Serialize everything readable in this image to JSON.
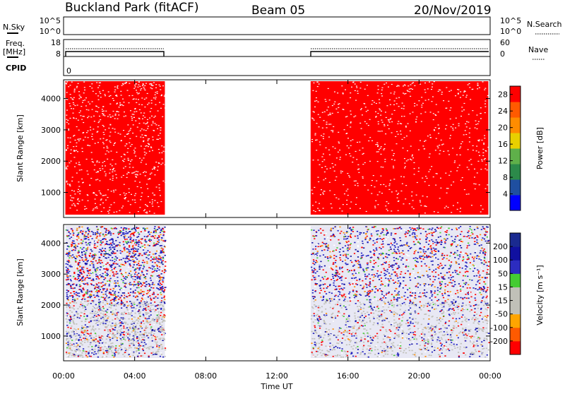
{
  "header": {
    "station": "Buckland Park (fitACF)",
    "beam": "Beam 05",
    "date": "20/Nov/2019"
  },
  "side_labels": {
    "nsky": "N.Sky",
    "nsky_ticks": [
      "10^5",
      "10^0"
    ],
    "nsearch": "N.Search",
    "nsearch_ticks": [
      "10^5",
      "10^0"
    ],
    "freq_line1": "Freq.",
    "freq_line2": "[MHz]",
    "freq_ticks": [
      "18",
      "8"
    ],
    "nave": "Nave",
    "nave_ticks": [
      "60",
      "0"
    ],
    "cpid": "CPID",
    "cpid_value": "0"
  },
  "colors": {
    "power_fill": "#ff0000",
    "power_scale": [
      "#0000ff",
      "#1f4fa0",
      "#2c8a4a",
      "#5fb04a",
      "#e8d000",
      "#ff8c00",
      "#ff5a00",
      "#ff0000"
    ],
    "velocity_scale": [
      "#ff0000",
      "#ff5a00",
      "#ffa500",
      "#c0c0b8",
      "#c0c0b8",
      "#44cc33",
      "#2c2cc0",
      "#1010a0",
      "#1a2a90"
    ]
  },
  "chart_data": [
    {
      "type": "heatmap",
      "name": "power",
      "ylabel": "Slant Range [km]",
      "yticks": [
        "1000",
        "2000",
        "3000",
        "4000"
      ],
      "ylim": [
        200,
        4600
      ],
      "xlabel": "",
      "xticks": [
        "00:00",
        "04:00",
        "08:00",
        "12:00",
        "16:00",
        "20:00",
        "00:00"
      ],
      "xlim_hours": [
        0,
        24
      ],
      "data_gaps_hours": [
        [
          5.7,
          13.9
        ]
      ],
      "colorbar": {
        "label": "Power [dB]",
        "ticks": [
          "4",
          "8",
          "12",
          "16",
          "20",
          "24",
          "28"
        ],
        "range": [
          0,
          30
        ]
      }
    },
    {
      "type": "heatmap",
      "name": "velocity",
      "ylabel": "Slant Range [km]",
      "yticks": [
        "1000",
        "2000",
        "3000",
        "4000"
      ],
      "ylim": [
        200,
        4600
      ],
      "xlabel": "Time UT",
      "xticks": [
        "00:00",
        "04:00",
        "08:00",
        "12:00",
        "16:00",
        "20:00",
        "00:00"
      ],
      "xlim_hours": [
        0,
        24
      ],
      "data_gaps_hours": [
        [
          5.7,
          13.9
        ]
      ],
      "colorbar": {
        "label": "Velocity [m s⁻¹]",
        "ticks": [
          "200",
          "100",
          "50",
          "15",
          "-15",
          "-50",
          "-100",
          "-200"
        ],
        "range": [
          -250,
          250
        ]
      }
    }
  ]
}
